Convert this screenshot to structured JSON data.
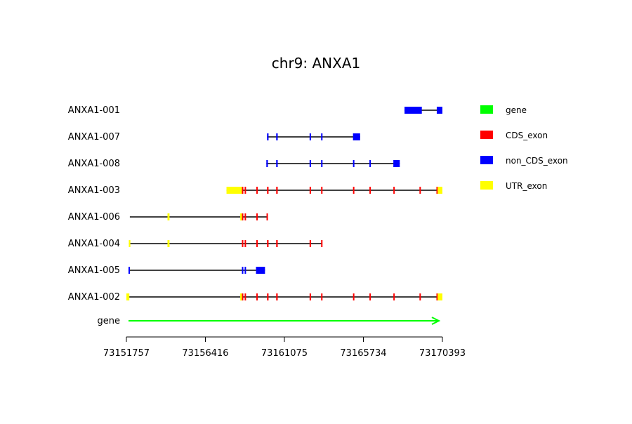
{
  "chart_data": {
    "type": "gene_structure",
    "title": "chr9: ANXA1",
    "axis": {
      "min": 73151757,
      "max": 73170393,
      "ticks": [
        73151757,
        73156416,
        73161075,
        73165734,
        73170393
      ]
    },
    "legend": {
      "placement": "right",
      "items": [
        {
          "label": "gene",
          "color": "#00ff00"
        },
        {
          "label": "CDS_exon",
          "color": "#ff0000"
        },
        {
          "label": "non_CDS_exon",
          "color": "#0000ff"
        },
        {
          "label": "UTR_exon",
          "color": "#ffff00"
        }
      ]
    },
    "colors": {
      "gene": "#00ff00",
      "CDS_exon": "#ff0000",
      "non_CDS_exon": "#0000ff",
      "UTR_exon": "#ffff00",
      "intron": "#000000"
    },
    "transcripts": [
      {
        "name": "ANXA1-001",
        "start": 73168160,
        "end": 73170393,
        "features": [
          {
            "type": "non_CDS_exon",
            "start": 73168160,
            "end": 73169180
          },
          {
            "type": "non_CDS_exon",
            "start": 73170060,
            "end": 73170393
          }
        ]
      },
      {
        "name": "ANXA1-007",
        "start": 73160050,
        "end": 73165540,
        "features": [
          {
            "type": "non_CDS_exon",
            "start": 73160050,
            "end": 73160140
          },
          {
            "type": "non_CDS_exon",
            "start": 73160590,
            "end": 73160680
          },
          {
            "type": "non_CDS_exon",
            "start": 73162560,
            "end": 73162640
          },
          {
            "type": "non_CDS_exon",
            "start": 73163240,
            "end": 73163300
          },
          {
            "type": "non_CDS_exon",
            "start": 73165120,
            "end": 73165540
          }
        ]
      },
      {
        "name": "ANXA1-008",
        "start": 73160010,
        "end": 73167880,
        "features": [
          {
            "type": "non_CDS_exon",
            "start": 73160010,
            "end": 73160100
          },
          {
            "type": "non_CDS_exon",
            "start": 73160590,
            "end": 73160680
          },
          {
            "type": "non_CDS_exon",
            "start": 73162560,
            "end": 73162640
          },
          {
            "type": "non_CDS_exon",
            "start": 73163240,
            "end": 73163300
          },
          {
            "type": "non_CDS_exon",
            "start": 73165120,
            "end": 73165200
          },
          {
            "type": "non_CDS_exon",
            "start": 73166090,
            "end": 73166170
          },
          {
            "type": "non_CDS_exon",
            "start": 73167500,
            "end": 73167880
          }
        ]
      },
      {
        "name": "ANXA1-003",
        "start": 73157660,
        "end": 73170393,
        "features": [
          {
            "type": "UTR_exon",
            "start": 73157660,
            "end": 73158570
          },
          {
            "type": "CDS_exon",
            "start": 73158570,
            "end": 73158630
          },
          {
            "type": "CDS_exon",
            "start": 73158730,
            "end": 73158800
          },
          {
            "type": "CDS_exon",
            "start": 73159420,
            "end": 73159490
          },
          {
            "type": "CDS_exon",
            "start": 73160050,
            "end": 73160140
          },
          {
            "type": "CDS_exon",
            "start": 73160590,
            "end": 73160680
          },
          {
            "type": "CDS_exon",
            "start": 73162560,
            "end": 73162640
          },
          {
            "type": "CDS_exon",
            "start": 73163240,
            "end": 73163300
          },
          {
            "type": "CDS_exon",
            "start": 73165120,
            "end": 73165200
          },
          {
            "type": "CDS_exon",
            "start": 73166090,
            "end": 73166170
          },
          {
            "type": "CDS_exon",
            "start": 73167500,
            "end": 73167540
          },
          {
            "type": "CDS_exon",
            "start": 73169040,
            "end": 73169110
          },
          {
            "type": "CDS_exon",
            "start": 73170040,
            "end": 73170110
          },
          {
            "type": "UTR_exon",
            "start": 73170110,
            "end": 73170393
          }
        ]
      },
      {
        "name": "ANXA1-006",
        "start": 73151960,
        "end": 73160090,
        "features": [
          {
            "type": "UTR_exon",
            "start": 73154180,
            "end": 73154300
          },
          {
            "type": "UTR_exon",
            "start": 73158470,
            "end": 73158570
          },
          {
            "type": "CDS_exon",
            "start": 73158570,
            "end": 73158630
          },
          {
            "type": "CDS_exon",
            "start": 73158730,
            "end": 73158800
          },
          {
            "type": "CDS_exon",
            "start": 73159420,
            "end": 73159490
          },
          {
            "type": "CDS_exon",
            "start": 73160020,
            "end": 73160090
          }
        ]
      },
      {
        "name": "ANXA1-004",
        "start": 73151900,
        "end": 73163300,
        "features": [
          {
            "type": "UTR_exon",
            "start": 73151900,
            "end": 73151990
          },
          {
            "type": "UTR_exon",
            "start": 73154180,
            "end": 73154300
          },
          {
            "type": "CDS_exon",
            "start": 73158570,
            "end": 73158630
          },
          {
            "type": "CDS_exon",
            "start": 73158730,
            "end": 73158800
          },
          {
            "type": "CDS_exon",
            "start": 73159420,
            "end": 73159490
          },
          {
            "type": "CDS_exon",
            "start": 73160050,
            "end": 73160140
          },
          {
            "type": "CDS_exon",
            "start": 73160590,
            "end": 73160680
          },
          {
            "type": "CDS_exon",
            "start": 73162560,
            "end": 73162640
          },
          {
            "type": "CDS_exon",
            "start": 73163240,
            "end": 73163300
          }
        ]
      },
      {
        "name": "ANXA1-005",
        "start": 73151880,
        "end": 73159930,
        "features": [
          {
            "type": "non_CDS_exon",
            "start": 73151880,
            "end": 73151960
          },
          {
            "type": "non_CDS_exon",
            "start": 73158570,
            "end": 73158650
          },
          {
            "type": "non_CDS_exon",
            "start": 73158730,
            "end": 73158810
          },
          {
            "type": "non_CDS_exon",
            "start": 73159400,
            "end": 73159930
          }
        ]
      },
      {
        "name": "ANXA1-002",
        "start": 73151757,
        "end": 73170393,
        "features": [
          {
            "type": "UTR_exon",
            "start": 73151757,
            "end": 73151930
          },
          {
            "type": "UTR_exon",
            "start": 73158470,
            "end": 73158570
          },
          {
            "type": "CDS_exon",
            "start": 73158570,
            "end": 73158630
          },
          {
            "type": "CDS_exon",
            "start": 73158730,
            "end": 73158800
          },
          {
            "type": "CDS_exon",
            "start": 73159420,
            "end": 73159490
          },
          {
            "type": "CDS_exon",
            "start": 73160050,
            "end": 73160140
          },
          {
            "type": "CDS_exon",
            "start": 73160590,
            "end": 73160680
          },
          {
            "type": "CDS_exon",
            "start": 73162560,
            "end": 73162640
          },
          {
            "type": "CDS_exon",
            "start": 73163240,
            "end": 73163300
          },
          {
            "type": "CDS_exon",
            "start": 73165120,
            "end": 73165200
          },
          {
            "type": "CDS_exon",
            "start": 73166090,
            "end": 73166170
          },
          {
            "type": "CDS_exon",
            "start": 73167500,
            "end": 73167540
          },
          {
            "type": "CDS_exon",
            "start": 73169040,
            "end": 73169110
          },
          {
            "type": "CDS_exon",
            "start": 73170040,
            "end": 73170110
          },
          {
            "type": "UTR_exon",
            "start": 73170110,
            "end": 73170393
          }
        ]
      }
    ],
    "gene_track": {
      "name": "gene",
      "start": 73151757,
      "end": 73170393,
      "direction": "forward"
    }
  }
}
